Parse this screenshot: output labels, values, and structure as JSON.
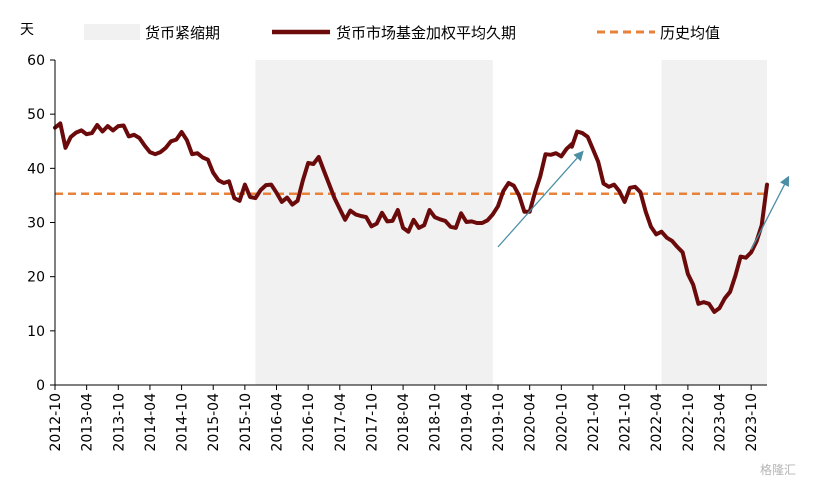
{
  "chart_data": {
    "type": "line",
    "unit_label": "天",
    "ylim": [
      0,
      60
    ],
    "yticks": [
      0,
      10,
      20,
      30,
      40,
      50,
      60
    ],
    "xlim": [
      "2012-10",
      "2024-01"
    ],
    "xticks": [
      "2012-10",
      "2013-04",
      "2013-10",
      "2014-04",
      "2014-10",
      "2015-04",
      "2015-10",
      "2016-04",
      "2016-10",
      "2017-04",
      "2017-10",
      "2018-04",
      "2018-10",
      "2019-04",
      "2019-10",
      "2020-04",
      "2020-10",
      "2021-04",
      "2021-10",
      "2022-04",
      "2022-10",
      "2023-04",
      "2023-10"
    ],
    "legend": {
      "placement": "top",
      "shade_label": "货币紧缩期",
      "line_label": "货币市场基金加权平均久期",
      "mean_label": "历史均值"
    },
    "colors": {
      "series": "#6b0a0a",
      "mean": "#e8823a",
      "shade": "#f1f1f1",
      "arrow": "#4a8fa5",
      "axis": "#000000"
    },
    "tightening_periods": [
      {
        "start": "2015-12",
        "end": "2019-09"
      },
      {
        "start": "2022-05",
        "end": "2024-01"
      }
    ],
    "mean_value": 35.3,
    "series": [
      {
        "name": "货币市场基金加权平均久期",
        "points": [
          [
            "2012-10",
            47.5
          ],
          [
            "2012-11",
            48.3
          ],
          [
            "2012-12",
            43.8
          ],
          [
            "2013-01",
            45.8
          ],
          [
            "2013-02",
            46.6
          ],
          [
            "2013-03",
            47.0
          ],
          [
            "2013-04",
            46.3
          ],
          [
            "2013-05",
            46.5
          ],
          [
            "2013-06",
            48.0
          ],
          [
            "2013-07",
            46.8
          ],
          [
            "2013-08",
            47.8
          ],
          [
            "2013-09",
            47.0
          ],
          [
            "2013-10",
            47.8
          ],
          [
            "2013-11",
            47.9
          ],
          [
            "2013-12",
            45.9
          ],
          [
            "2014-01",
            46.2
          ],
          [
            "2014-02",
            45.6
          ],
          [
            "2014-03",
            44.2
          ],
          [
            "2014-04",
            43.0
          ],
          [
            "2014-05",
            42.6
          ],
          [
            "2014-06",
            43.0
          ],
          [
            "2014-07",
            43.8
          ],
          [
            "2014-08",
            45.0
          ],
          [
            "2014-09",
            45.3
          ],
          [
            "2014-10",
            46.7
          ],
          [
            "2014-11",
            45.2
          ],
          [
            "2014-12",
            42.6
          ],
          [
            "2015-01",
            42.8
          ],
          [
            "2015-02",
            42.0
          ],
          [
            "2015-03",
            41.6
          ],
          [
            "2015-04",
            39.2
          ],
          [
            "2015-05",
            37.8
          ],
          [
            "2015-06",
            37.3
          ],
          [
            "2015-07",
            37.6
          ],
          [
            "2015-08",
            34.5
          ],
          [
            "2015-09",
            34.0
          ],
          [
            "2015-10",
            37.0
          ],
          [
            "2015-11",
            34.7
          ],
          [
            "2015-12",
            34.5
          ],
          [
            "2016-01",
            36.0
          ],
          [
            "2016-02",
            36.9
          ],
          [
            "2016-03",
            37.0
          ],
          [
            "2016-04",
            35.5
          ],
          [
            "2016-05",
            33.8
          ],
          [
            "2016-06",
            34.6
          ],
          [
            "2016-07",
            33.3
          ],
          [
            "2016-08",
            34.0
          ],
          [
            "2016-09",
            37.8
          ],
          [
            "2016-10",
            41.0
          ],
          [
            "2016-11",
            40.8
          ],
          [
            "2016-12",
            42.1
          ],
          [
            "2017-01",
            39.5
          ],
          [
            "2017-02",
            37.0
          ],
          [
            "2017-03",
            34.5
          ],
          [
            "2017-04",
            32.5
          ],
          [
            "2017-05",
            30.5
          ],
          [
            "2017-06",
            32.2
          ],
          [
            "2017-07",
            31.5
          ],
          [
            "2017-08",
            31.2
          ],
          [
            "2017-09",
            31.0
          ],
          [
            "2017-10",
            29.3
          ],
          [
            "2017-11",
            29.8
          ],
          [
            "2017-12",
            31.8
          ],
          [
            "2018-01",
            30.2
          ],
          [
            "2018-02",
            30.3
          ],
          [
            "2018-03",
            32.3
          ],
          [
            "2018-04",
            29.0
          ],
          [
            "2018-05",
            28.3
          ],
          [
            "2018-06",
            30.5
          ],
          [
            "2018-07",
            29.0
          ],
          [
            "2018-08",
            29.5
          ],
          [
            "2018-09",
            32.3
          ],
          [
            "2018-10",
            31.0
          ],
          [
            "2018-11",
            30.6
          ],
          [
            "2018-12",
            30.3
          ],
          [
            "2019-01",
            29.2
          ],
          [
            "2019-02",
            29.0
          ],
          [
            "2019-03",
            31.7
          ],
          [
            "2019-04",
            30.1
          ],
          [
            "2019-05",
            30.2
          ],
          [
            "2019-06",
            29.9
          ],
          [
            "2019-07",
            29.9
          ],
          [
            "2019-08",
            30.4
          ],
          [
            "2019-09",
            31.5
          ],
          [
            "2019-10",
            33.0
          ],
          [
            "2019-11",
            35.8
          ],
          [
            "2019-12",
            37.3
          ],
          [
            "2020-01",
            36.8
          ],
          [
            "2020-02",
            35.0
          ],
          [
            "2020-03",
            32.0
          ],
          [
            "2020-04",
            32.0
          ],
          [
            "2020-05",
            35.5
          ],
          [
            "2020-06",
            38.5
          ],
          [
            "2020-07",
            42.6
          ],
          [
            "2020-08",
            42.5
          ],
          [
            "2020-09",
            42.8
          ],
          [
            "2020-10",
            42.2
          ],
          [
            "2020-11",
            43.6
          ],
          [
            "2020-12",
            44.5
          ],
          [
            "2020-12",
            44.0
          ],
          [
            "2021-01",
            46.8
          ],
          [
            "2021-02",
            46.5
          ],
          [
            "2021-03",
            45.8
          ],
          [
            "2021-04",
            43.5
          ],
          [
            "2021-05",
            41.2
          ],
          [
            "2021-06",
            37.2
          ],
          [
            "2021-07",
            36.6
          ],
          [
            "2021-08",
            37.0
          ],
          [
            "2021-09",
            35.8
          ],
          [
            "2021-10",
            33.8
          ],
          [
            "2021-11",
            36.4
          ],
          [
            "2021-12",
            36.6
          ],
          [
            "2022-01",
            35.6
          ],
          [
            "2022-02",
            32.0
          ],
          [
            "2022-03",
            29.2
          ],
          [
            "2022-04",
            27.8
          ],
          [
            "2022-05",
            28.3
          ],
          [
            "2022-06",
            27.2
          ],
          [
            "2022-07",
            26.6
          ],
          [
            "2022-08",
            25.5
          ],
          [
            "2022-09",
            24.5
          ],
          [
            "2022-10",
            20.5
          ],
          [
            "2022-11",
            18.5
          ],
          [
            "2022-12",
            15.0
          ],
          [
            "2023-01",
            15.3
          ],
          [
            "2023-02",
            15.0
          ],
          [
            "2023-03",
            13.5
          ],
          [
            "2023-04",
            14.2
          ],
          [
            "2023-05",
            16.0
          ],
          [
            "2023-06",
            17.2
          ],
          [
            "2023-07",
            20.2
          ],
          [
            "2023-08",
            23.7
          ],
          [
            "2023-09",
            23.5
          ],
          [
            "2023-10",
            24.5
          ],
          [
            "2023-11",
            26.5
          ],
          [
            "2023-12",
            29.5
          ],
          [
            "2024-01",
            37.0
          ]
        ]
      }
    ],
    "trend_arrows": [
      {
        "from": [
          "2019-10",
          25.5
        ],
        "to": [
          "2021-02",
          43.0
        ]
      },
      {
        "from": [
          "2023-10",
          25.0
        ],
        "to": [
          "2024-05",
          38.3
        ]
      }
    ]
  },
  "watermark": "格隆汇"
}
